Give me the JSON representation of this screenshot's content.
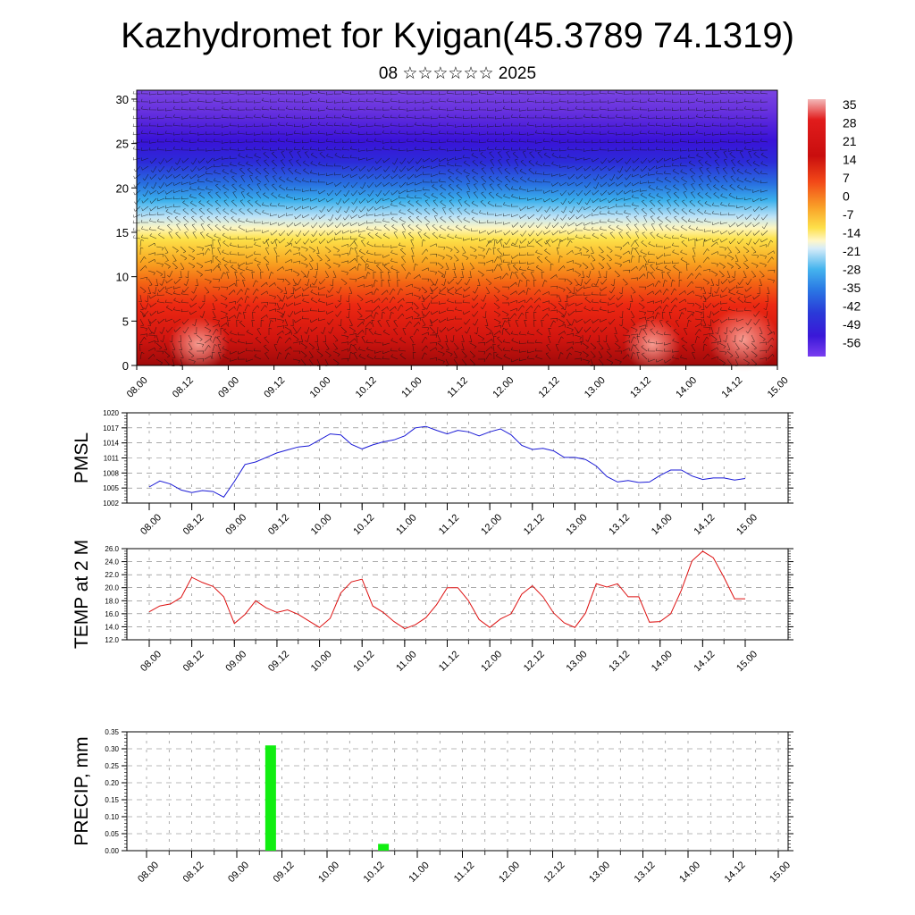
{
  "title": "Kazhydromet for Kyigan(45.3789 74.1319)",
  "subtitle": "08 ☆☆☆☆☆☆ 2025",
  "colors": {
    "pmsl_line": "#1a1ad6",
    "temp_line": "#dd1111",
    "precip_bar": "#11ee11",
    "grid": "#777777"
  },
  "chart_data": [
    {
      "type": "heatmap",
      "title": "",
      "xlabel": "",
      "ylabel": "",
      "x_ticks": [
        "08.00",
        "08.12",
        "09.00",
        "09.12",
        "10.00",
        "10.12",
        "11.00",
        "11.12",
        "12.00",
        "12.12",
        "13.00",
        "13.12",
        "14.00",
        "14.12",
        "15.00"
      ],
      "y_ticks": [
        "0",
        "5",
        "10",
        "15",
        "20",
        "25",
        "30"
      ],
      "ylim": [
        0,
        31
      ],
      "colorbar_labels": [
        "35",
        "28",
        "21",
        "14",
        "7",
        "0",
        "-7",
        "-14",
        "-21",
        "-28",
        "-35",
        "-42",
        "-49",
        "-56"
      ],
      "colorbar_range": [
        -63,
        42
      ],
      "overlay": "wind barbs"
    },
    {
      "type": "line",
      "ylabel": "PMSL",
      "x_ticks": [
        "08.00",
        "08.12",
        "09.00",
        "09.12",
        "10.00",
        "10.12",
        "11.00",
        "11.12",
        "12.00",
        "12.12",
        "13.00",
        "13.12",
        "14.00",
        "14.12",
        "15.00"
      ],
      "y_ticks": [
        "1020",
        "1017",
        "1014",
        "1011",
        "1008",
        "1005",
        "1002"
      ],
      "ylim": [
        1002,
        1020
      ],
      "grid": true,
      "step_hours": 3,
      "values": [
        1005.2,
        1006.4,
        1005.8,
        1004.6,
        1004.1,
        1004.5,
        1004.3,
        1003.2,
        1006.3,
        1009.7,
        1010.2,
        1011.1,
        1012.0,
        1012.6,
        1013.2,
        1013.4,
        1014.6,
        1015.8,
        1015.6,
        1013.7,
        1012.8,
        1013.6,
        1014.2,
        1014.6,
        1015.4,
        1017.0,
        1017.3,
        1016.5,
        1015.8,
        1016.5,
        1016.2,
        1015.4,
        1016.2,
        1016.8,
        1015.6,
        1013.5,
        1012.7,
        1012.9,
        1012.4,
        1011.1,
        1011.1,
        1010.7,
        1009.4,
        1007.3,
        1006.2,
        1006.5,
        1006.1,
        1006.2,
        1007.5,
        1008.6,
        1008.6,
        1007.4,
        1006.7,
        1007.0,
        1007.0,
        1006.6,
        1006.9
      ]
    },
    {
      "type": "line",
      "ylabel": "TEMP at 2 M",
      "x_ticks": [
        "08.00",
        "08.12",
        "09.00",
        "09.12",
        "10.00",
        "10.12",
        "11.00",
        "11.12",
        "12.00",
        "12.12",
        "13.00",
        "13.12",
        "14.00",
        "14.12",
        "15.00"
      ],
      "y_ticks": [
        "26.0",
        "24.0",
        "22.0",
        "20.0",
        "18.0",
        "16.0",
        "14.0",
        "12.0"
      ],
      "ylim": [
        12,
        26
      ],
      "grid": true,
      "step_hours": 3,
      "values": [
        16.3,
        17.2,
        17.5,
        18.5,
        21.6,
        20.8,
        20.2,
        18.6,
        14.5,
        15.9,
        18.0,
        16.9,
        16.2,
        16.6,
        15.9,
        14.9,
        13.9,
        15.3,
        19.2,
        20.9,
        21.3,
        17.2,
        16.2,
        14.8,
        13.7,
        14.3,
        15.4,
        17.4,
        20.0,
        20.0,
        18.0,
        15.1,
        13.9,
        15.2,
        16.0,
        19.0,
        20.3,
        18.6,
        16.1,
        14.6,
        13.9,
        16.1,
        20.6,
        20.1,
        20.6,
        18.6,
        18.6,
        14.7,
        14.8,
        16.0,
        19.6,
        24.1,
        25.6,
        24.6,
        21.6,
        18.3,
        18.3
      ]
    },
    {
      "type": "bar",
      "ylabel": "PRECIP, mm",
      "x_ticks": [
        "08.00",
        "08.12",
        "09.00",
        "09.12",
        "10.00",
        "10.12",
        "11.00",
        "11.12",
        "12.00",
        "12.12",
        "13.00",
        "13.12",
        "14.00",
        "14.12",
        "15.00"
      ],
      "y_ticks": [
        "0.35",
        "0.30",
        "0.25",
        "0.20",
        "0.15",
        "0.10",
        "0.05",
        "0.00"
      ],
      "ylim": [
        0,
        0.35
      ],
      "grid": true,
      "bars": [
        {
          "x_hours": 33,
          "value": 0.31
        },
        {
          "x_hours": 63,
          "value": 0.02
        }
      ]
    }
  ]
}
